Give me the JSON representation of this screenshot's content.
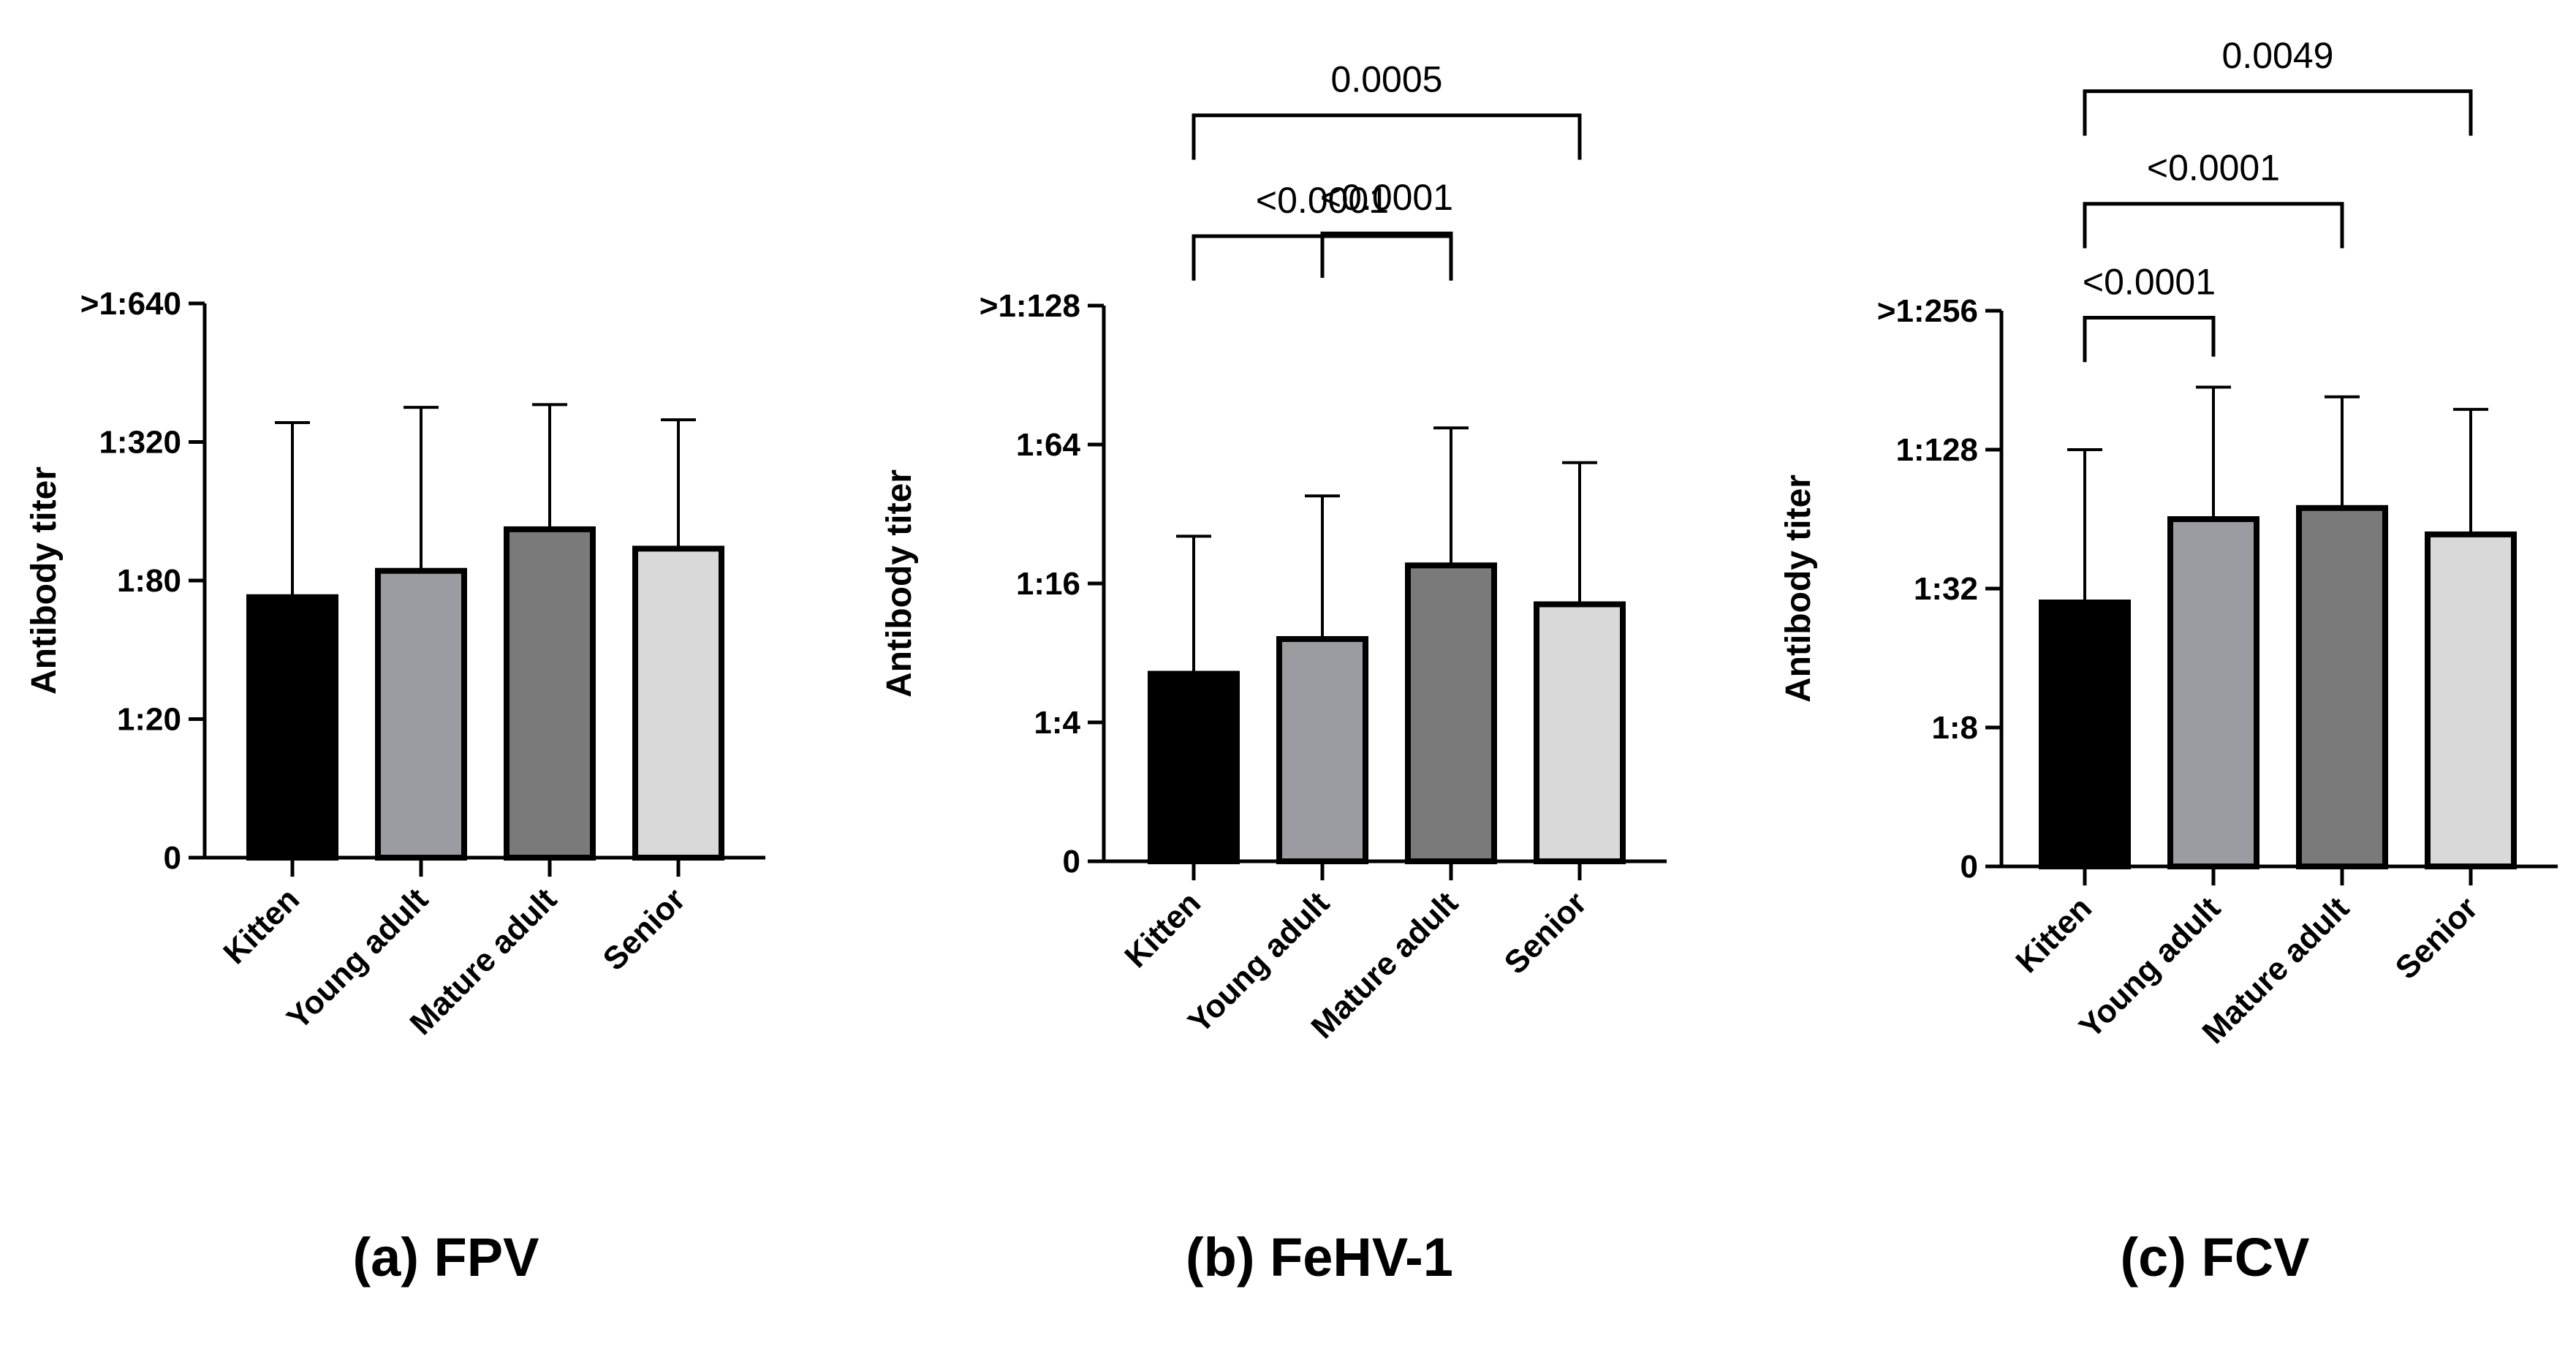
{
  "figure": {
    "panels": [
      "(a) FPV",
      "(b) FeHV-1",
      "(c) FCV"
    ]
  },
  "chart_data": [
    {
      "type": "bar",
      "title": "(a) FPV",
      "xlabel": "",
      "ylabel": "Antibody titer",
      "categories": [
        "Kitten",
        "Young adult",
        "Mature adult",
        "Senior"
      ],
      "ytick_labels": [
        "0",
        "1:20",
        "1:80",
        "1:320",
        ">1:640"
      ],
      "ylim": [
        0,
        4
      ],
      "values": [
        1.88,
        2.07,
        2.37,
        2.23
      ],
      "error_upper": [
        3.14,
        3.25,
        3.27,
        3.16
      ],
      "bar_colors": [
        "#000000",
        "#9b9ba2",
        "#7a7a7a",
        "#d9d9d9"
      ],
      "comparisons": []
    },
    {
      "type": "bar",
      "title": "(b) FeHV-1",
      "xlabel": "",
      "ylabel": "Antibody titer",
      "categories": [
        "Kitten",
        "Young adult",
        "Mature adult",
        "Senior"
      ],
      "ytick_labels": [
        "0",
        "1:4",
        "1:16",
        "1:64",
        ">1:128"
      ],
      "ylim": [
        0,
        4
      ],
      "values": [
        1.35,
        1.6,
        2.13,
        1.85
      ],
      "error_upper": [
        2.34,
        2.63,
        3.12,
        2.87
      ],
      "bar_colors": [
        "#000000",
        "#9b9ba2",
        "#7a7a7a",
        "#d9d9d9"
      ],
      "comparisons": [
        {
          "from": 1,
          "to": 2,
          "label": "<0.0001",
          "level": 4.52
        },
        {
          "from": 0,
          "to": 2,
          "label": "<0.0001",
          "level": 4.5
        },
        {
          "from": 0,
          "to": 3,
          "label": "0.0005",
          "level": 5.37
        }
      ]
    },
    {
      "type": "bar",
      "title": "(c) FCV",
      "xlabel": "",
      "ylabel": "Antibody titer",
      "categories": [
        "Kitten",
        "Young adult",
        "Mature adult",
        "Senior"
      ],
      "ytick_labels": [
        "0",
        "1:8",
        "1:32",
        "1:128",
        ">1:256"
      ],
      "ylim": [
        0,
        4
      ],
      "values": [
        1.9,
        2.5,
        2.58,
        2.39
      ],
      "error_upper": [
        3.0,
        3.45,
        3.38,
        3.29
      ],
      "bar_colors": [
        "#000000",
        "#9b9ba2",
        "#7a7a7a",
        "#d9d9d9"
      ],
      "comparisons": [
        {
          "from": 0,
          "to": 1,
          "label": "<0.0001",
          "level": 3.95
        },
        {
          "from": 0,
          "to": 2,
          "label": "<0.0001",
          "level": 4.77
        },
        {
          "from": 0,
          "to": 3,
          "label": "0.0049",
          "level": 5.58
        }
      ]
    }
  ]
}
